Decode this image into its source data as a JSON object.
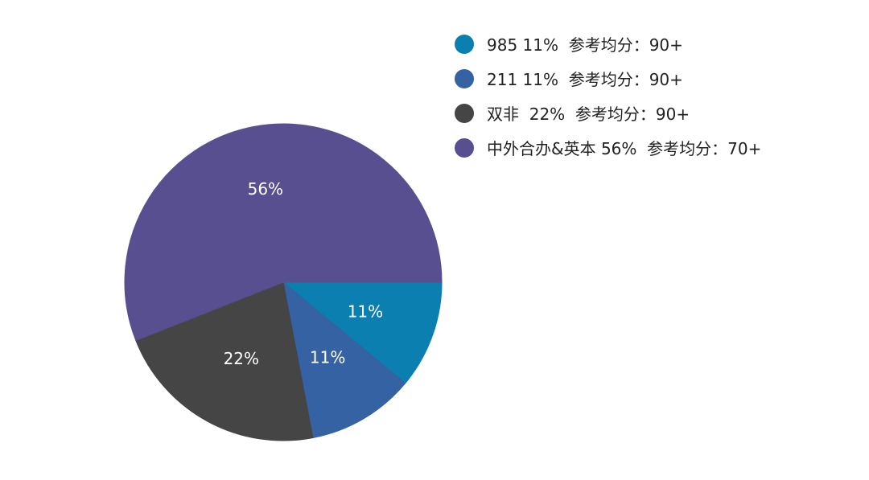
{
  "chart_data": {
    "type": "pie",
    "start_angle": "3 o'clock, clockwise",
    "legend_position": "top-right",
    "slices": [
      {
        "label": "985 11%  参考均分：90+",
        "value": 11,
        "data_label": "11%",
        "color": "#0A7FB0"
      },
      {
        "label": "211 11%  参考均分：90+",
        "value": 11,
        "data_label": "11%",
        "color": "#3562A2"
      },
      {
        "label": "双非  22%  参考均分：90+",
        "value": 22,
        "data_label": "22%",
        "color": "#454545"
      },
      {
        "label": "中外合办&英本 56%  参考均分：70+",
        "value": 56,
        "data_label": "56%",
        "color": "#574F8F"
      }
    ]
  }
}
